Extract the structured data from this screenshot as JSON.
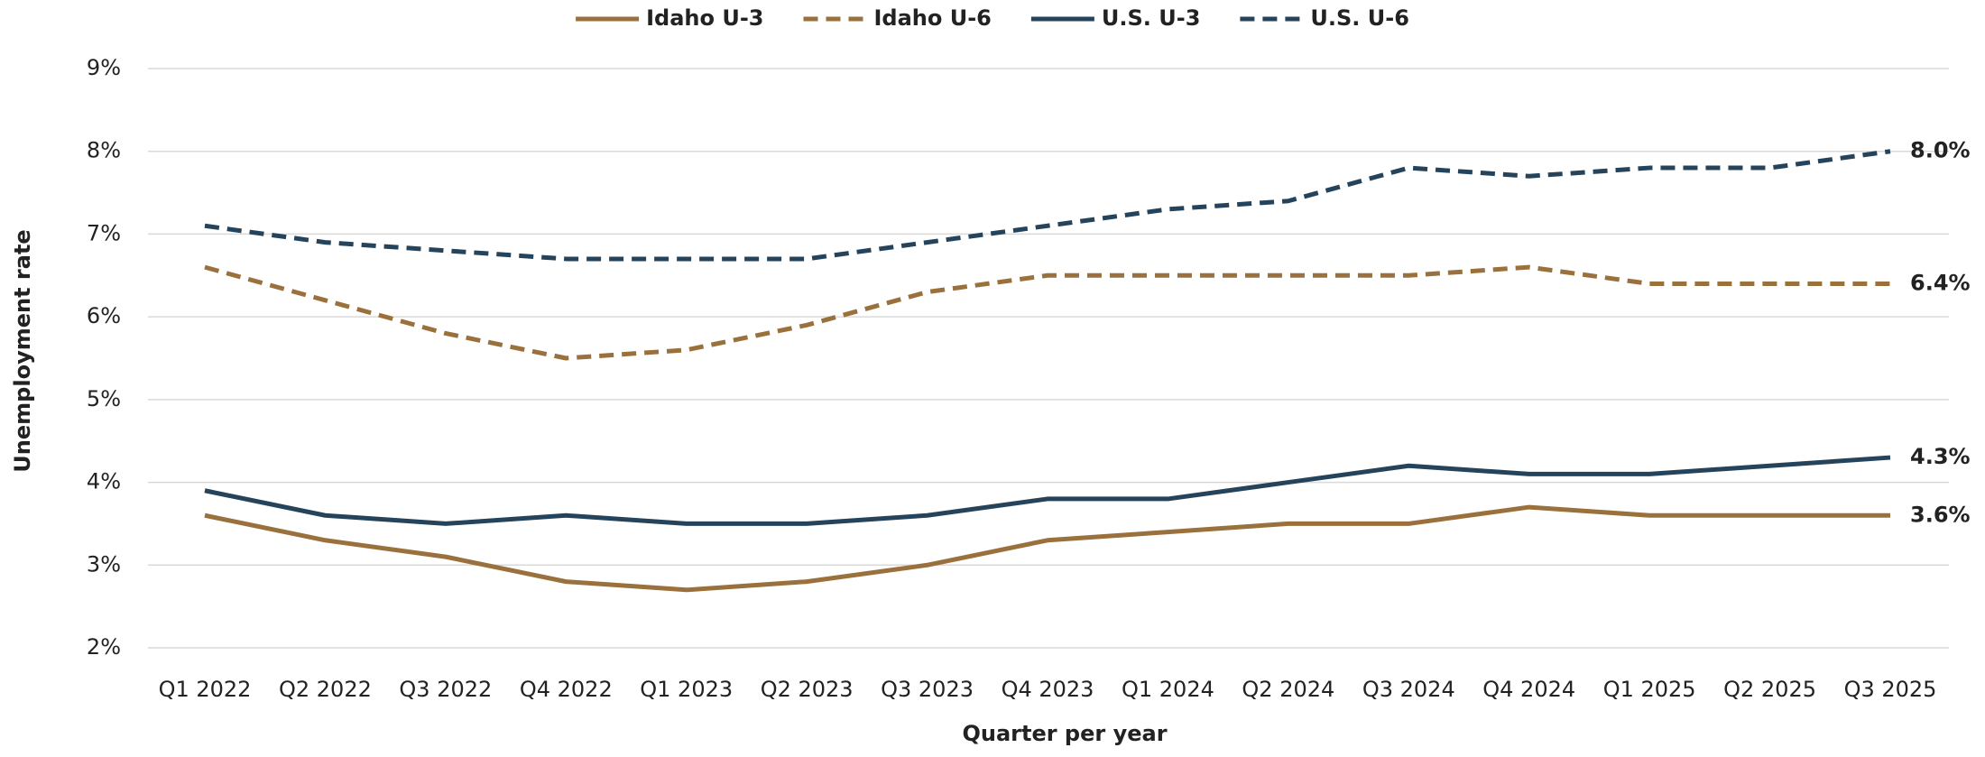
{
  "chart_data": {
    "type": "line",
    "x_label": "Quarter per year",
    "y_label": "Unemployment rate",
    "categories": [
      "Q1 2022",
      "Q2 2022",
      "Q3 2022",
      "Q4 2022",
      "Q1 2023",
      "Q2 2023",
      "Q3 2023",
      "Q4 2023",
      "Q1 2024",
      "Q2 2024",
      "Q3 2024",
      "Q4 2024",
      "Q1 2025",
      "Q2 2025",
      "Q3 2025"
    ],
    "series": [
      {
        "name": "Idaho U-3",
        "color": "#9a713c",
        "dashed": false,
        "values": [
          3.6,
          3.3,
          3.1,
          2.8,
          2.7,
          2.8,
          3.0,
          3.3,
          3.4,
          3.5,
          3.5,
          3.7,
          3.6,
          3.6,
          3.6
        ],
        "value_labels": [
          null,
          null,
          null,
          null,
          null,
          null,
          null,
          null,
          null,
          null,
          null,
          null,
          null,
          null,
          "3.6%"
        ]
      },
      {
        "name": "Idaho U-6",
        "color": "#9a713c",
        "dashed": true,
        "values": [
          6.6,
          6.2,
          5.8,
          5.5,
          5.6,
          5.9,
          6.3,
          6.5,
          6.5,
          6.5,
          6.5,
          6.6,
          6.4,
          6.4,
          6.4
        ],
        "value_labels": [
          null,
          null,
          null,
          null,
          null,
          null,
          null,
          null,
          null,
          null,
          null,
          null,
          null,
          null,
          "6.4%"
        ]
      },
      {
        "name": "U.S. U-3",
        "color": "#25445c",
        "dashed": false,
        "values": [
          3.9,
          3.6,
          3.5,
          3.6,
          3.5,
          3.5,
          3.6,
          3.8,
          3.8,
          4.0,
          4.2,
          4.1,
          4.1,
          4.2,
          4.3
        ],
        "value_labels": [
          null,
          null,
          null,
          null,
          null,
          null,
          null,
          null,
          null,
          null,
          null,
          null,
          null,
          null,
          "4.3%"
        ]
      },
      {
        "name": "U.S. U-6",
        "color": "#25445c",
        "dashed": true,
        "values": [
          7.1,
          6.9,
          6.8,
          6.7,
          6.7,
          6.7,
          6.9,
          7.1,
          7.3,
          7.4,
          7.8,
          7.7,
          7.8,
          7.8,
          8.0
        ],
        "value_labels": [
          null,
          null,
          null,
          null,
          null,
          null,
          null,
          null,
          null,
          null,
          null,
          null,
          null,
          null,
          "8.0%"
        ]
      }
    ],
    "ylim": [
      2,
      9
    ],
    "yticks": [
      {
        "value": 2,
        "label": "2%"
      },
      {
        "value": 3,
        "label": "3%"
      },
      {
        "value": 4,
        "label": "4%"
      },
      {
        "value": 5,
        "label": "5%"
      },
      {
        "value": 6,
        "label": "6%"
      },
      {
        "value": 7,
        "label": "7%"
      },
      {
        "value": 8,
        "label": "8%"
      },
      {
        "value": 9,
        "label": "9%"
      }
    ],
    "grid": true,
    "legend": "top"
  }
}
